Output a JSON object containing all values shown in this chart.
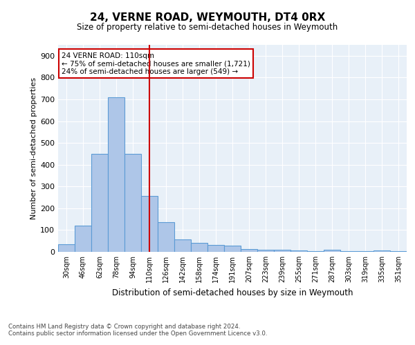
{
  "title": "24, VERNE ROAD, WEYMOUTH, DT4 0RX",
  "subtitle": "Size of property relative to semi-detached houses in Weymouth",
  "xlabel": "Distribution of semi-detached houses by size in Weymouth",
  "ylabel": "Number of semi-detached properties",
  "categories": [
    "30sqm",
    "46sqm",
    "62sqm",
    "78sqm",
    "94sqm",
    "110sqm",
    "126sqm",
    "142sqm",
    "158sqm",
    "174sqm",
    "191sqm",
    "207sqm",
    "223sqm",
    "239sqm",
    "255sqm",
    "271sqm",
    "287sqm",
    "303sqm",
    "319sqm",
    "335sqm",
    "351sqm"
  ],
  "values": [
    35,
    120,
    450,
    710,
    450,
    255,
    135,
    57,
    40,
    33,
    28,
    13,
    10,
    9,
    5,
    3,
    8,
    3,
    2,
    5,
    4
  ],
  "bar_color": "#aec6e8",
  "bar_edge_color": "#5b9bd5",
  "vline_x": 5,
  "vline_color": "#cc0000",
  "annotation_text": "24 VERNE ROAD: 110sqm\n← 75% of semi-detached houses are smaller (1,721)\n24% of semi-detached houses are larger (549) →",
  "annotation_box_color": "#ffffff",
  "annotation_box_edge": "#cc0000",
  "footnote1": "Contains HM Land Registry data © Crown copyright and database right 2024.",
  "footnote2": "Contains public sector information licensed under the Open Government Licence v3.0.",
  "background_color": "#e8f0f8",
  "ylim": [
    0,
    950
  ],
  "yticks": [
    0,
    100,
    200,
    300,
    400,
    500,
    600,
    700,
    800,
    900
  ]
}
